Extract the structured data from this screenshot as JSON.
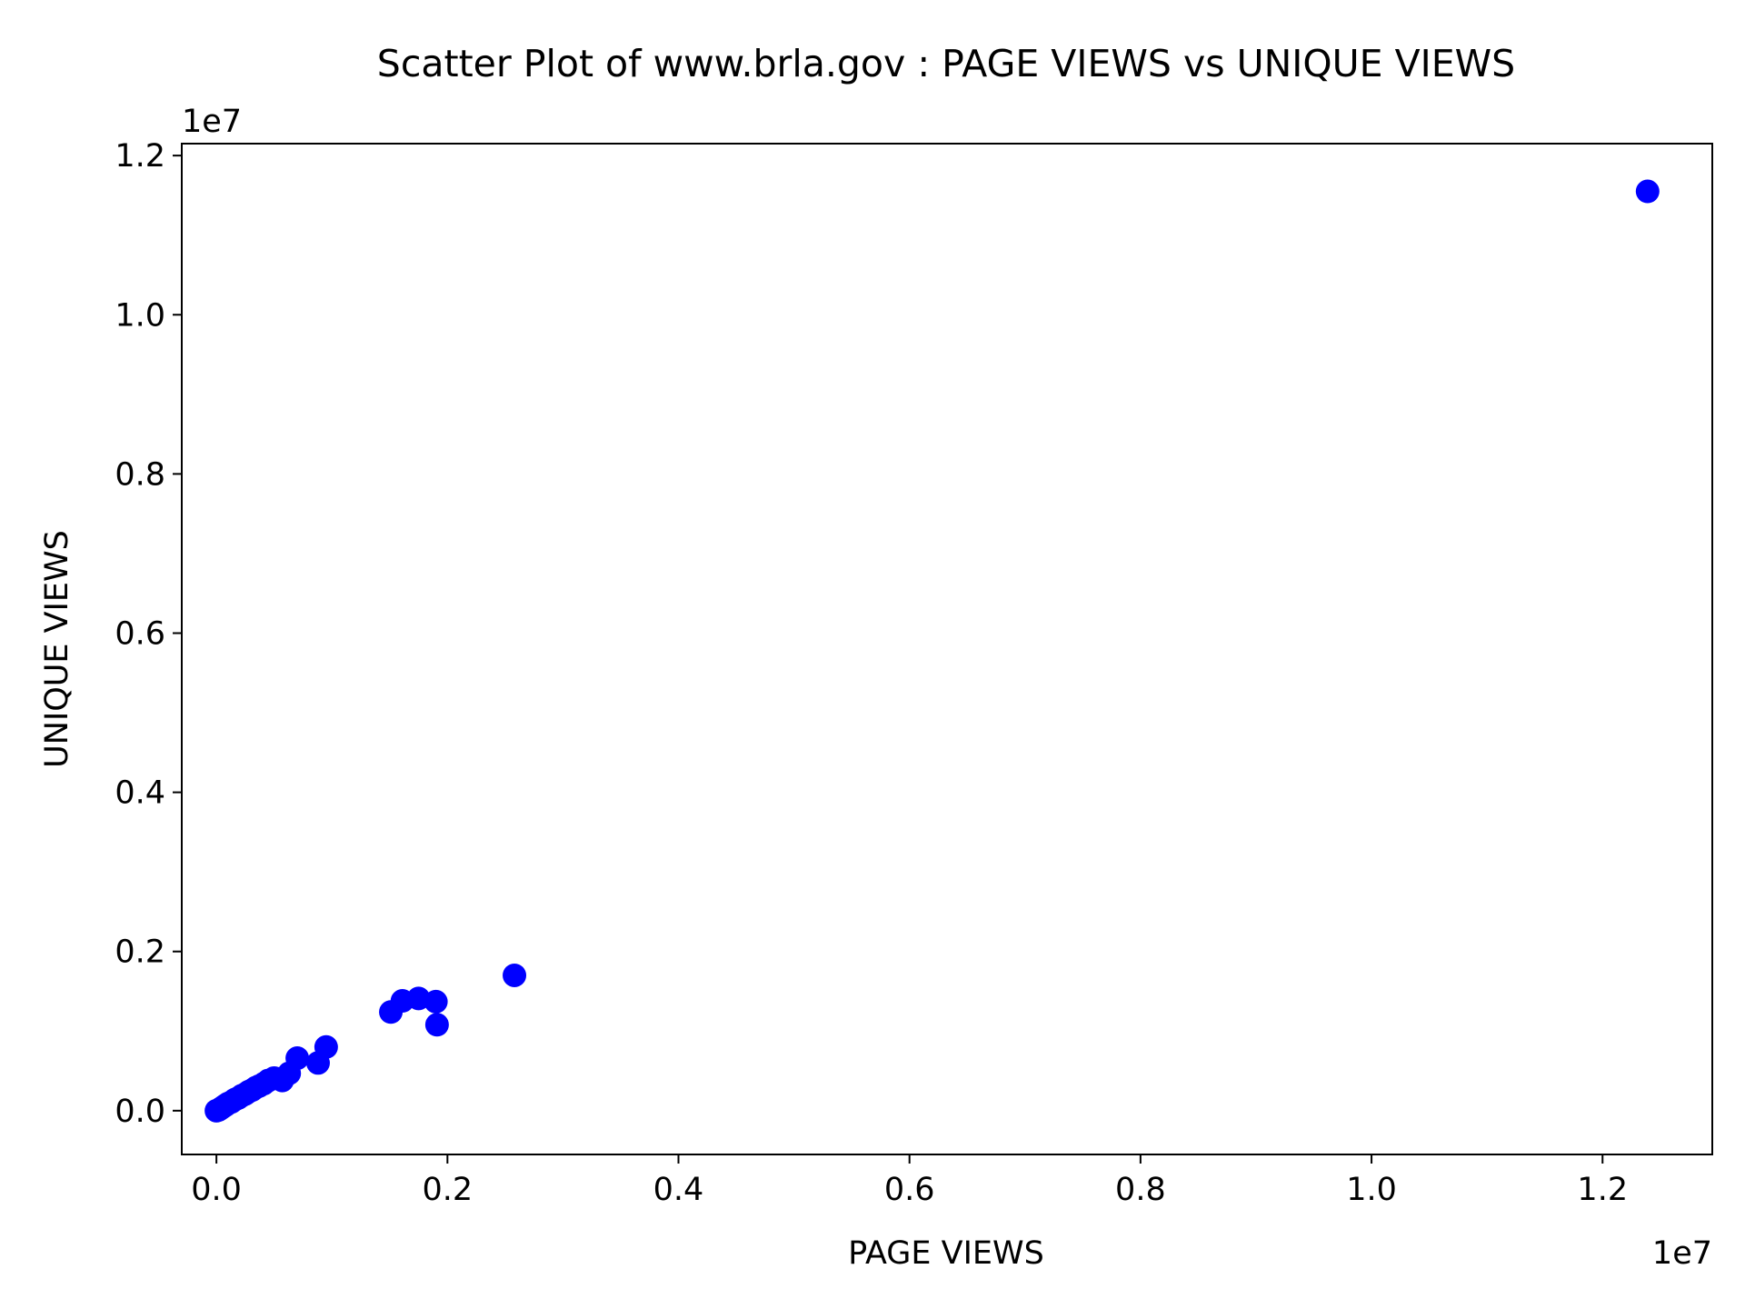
{
  "chart_data": {
    "type": "scatter",
    "title": "Scatter Plot of www.brla.gov : PAGE VIEWS vs UNIQUE VIEWS",
    "xlabel": "PAGE VIEWS",
    "ylabel": "UNIQUE VIEWS",
    "x_multiplier": "1e7",
    "y_multiplier": "1e7",
    "xlim": [
      -0.03,
      1.295
    ],
    "ylim": [
      -0.055,
      1.215
    ],
    "x_unit_scale": 10000000,
    "xticks": [
      "0.0",
      "0.2",
      "0.4",
      "0.6",
      "0.8",
      "1.0",
      "1.2"
    ],
    "yticks": [
      "0.0",
      "0.2",
      "0.4",
      "0.6",
      "0.8",
      "1.0",
      "1.2"
    ],
    "xtick_values": [
      0.0,
      0.2,
      0.4,
      0.6,
      0.8,
      1.0,
      1.2
    ],
    "ytick_values": [
      0.0,
      0.2,
      0.4,
      0.6,
      0.8,
      1.0,
      1.2
    ],
    "grid": false,
    "marker_color": "#0000ff",
    "points": [
      {
        "x": 0.0,
        "y": 0.0
      },
      {
        "x": 0.002,
        "y": 0.001
      },
      {
        "x": 0.004,
        "y": 0.003
      },
      {
        "x": 0.006,
        "y": 0.005
      },
      {
        "x": 0.008,
        "y": 0.007
      },
      {
        "x": 0.01,
        "y": 0.009
      },
      {
        "x": 0.013,
        "y": 0.011
      },
      {
        "x": 0.016,
        "y": 0.014
      },
      {
        "x": 0.019,
        "y": 0.016
      },
      {
        "x": 0.022,
        "y": 0.019
      },
      {
        "x": 0.025,
        "y": 0.021
      },
      {
        "x": 0.028,
        "y": 0.024
      },
      {
        "x": 0.031,
        "y": 0.026
      },
      {
        "x": 0.034,
        "y": 0.029
      },
      {
        "x": 0.037,
        "y": 0.031
      },
      {
        "x": 0.041,
        "y": 0.034
      },
      {
        "x": 0.045,
        "y": 0.038
      },
      {
        "x": 0.05,
        "y": 0.041
      },
      {
        "x": 0.057,
        "y": 0.038
      },
      {
        "x": 0.063,
        "y": 0.047
      },
      {
        "x": 0.07,
        "y": 0.066
      },
      {
        "x": 0.088,
        "y": 0.06
      },
      {
        "x": 0.095,
        "y": 0.08
      },
      {
        "x": 0.151,
        "y": 0.124
      },
      {
        "x": 0.161,
        "y": 0.138
      },
      {
        "x": 0.175,
        "y": 0.141
      },
      {
        "x": 0.19,
        "y": 0.137
      },
      {
        "x": 0.191,
        "y": 0.108
      },
      {
        "x": 0.258,
        "y": 0.17
      },
      {
        "x": 1.239,
        "y": 1.155
      }
    ]
  }
}
